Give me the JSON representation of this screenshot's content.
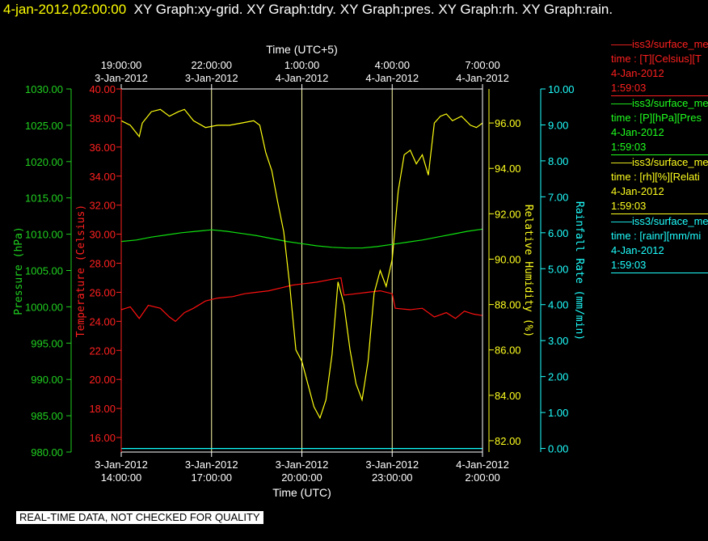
{
  "header": {
    "timestamp": "4-jan-2012,02:00:00",
    "titles": "XY Graph:xy-grid.  XY Graph:tdry.  XY Graph:pres.  XY Graph:rh.  XY Graph:rain."
  },
  "footer": "REAL-TIME DATA, NOT CHECKED FOR QUALITY",
  "colors": {
    "background": "#000000",
    "frame": "#ffffff",
    "grid": "#ffffaa",
    "temperature": "#ff0000",
    "pressure": "#00ff00",
    "rh": "#ffff00",
    "rain": "#00ffff"
  },
  "legend": [
    {
      "line1": "iss3/surface_me",
      "line2": "time : [T][Celsius][T",
      "line3": "4-Jan-2012",
      "line4": "1:59:03",
      "color": "#ff2020"
    },
    {
      "line1": "iss3/surface_me",
      "line2": "time : [P][hPa][Pres",
      "line3": "4-Jan-2012",
      "line4": "1:59:03",
      "color": "#20ff20"
    },
    {
      "line1": "iss3/surface_me",
      "line2": "time : [rh][%][Relati",
      "line3": "4-Jan-2012",
      "line4": "1:59:03",
      "color": "#ffff20"
    },
    {
      "line1": "iss3/surface_me",
      "line2": "time : [rainr][mm/mi",
      "line3": "4-Jan-2012",
      "line4": "1:59:03",
      "color": "#20ffff"
    }
  ],
  "chart_data": {
    "type": "line",
    "grid": true,
    "x_top": {
      "title": "Time (UTC+5)",
      "ticks": [
        {
          "time": "19:00:00",
          "date": "3-Jan-2012"
        },
        {
          "time": "22:00:00",
          "date": "3-Jan-2012"
        },
        {
          "time": "1:00:00",
          "date": "4-Jan-2012"
        },
        {
          "time": "4:00:00",
          "date": "4-Jan-2012"
        },
        {
          "time": "7:00:00",
          "date": "4-Jan-2012"
        }
      ]
    },
    "x_bottom": {
      "title": "Time (UTC)",
      "range": [
        "3-Jan-2012 14:00:00",
        "4-Jan-2012 2:00:00"
      ],
      "ticks": [
        {
          "date": "3-Jan-2012",
          "time": "14:00:00"
        },
        {
          "date": "3-Jan-2012",
          "time": "17:00:00"
        },
        {
          "date": "3-Jan-2012",
          "time": "20:00:00"
        },
        {
          "date": "3-Jan-2012",
          "time": "23:00:00"
        },
        {
          "date": "4-Jan-2012",
          "time": "2:00:00"
        }
      ]
    },
    "axes": {
      "pressure": {
        "label": "Pressure (hPa)",
        "range": [
          980,
          1030
        ],
        "ticks": [
          "980.00",
          "985.00",
          "990.00",
          "995.00",
          "1000.00",
          "1005.00",
          "1010.00",
          "1015.00",
          "1020.00",
          "1025.00",
          "1030.00"
        ]
      },
      "temperature": {
        "label": "Temperature (Celsius)",
        "range": [
          15,
          40
        ],
        "ticks": [
          "16.00",
          "18.00",
          "20.00",
          "22.00",
          "24.00",
          "26.00",
          "28.00",
          "30.00",
          "32.00",
          "34.00",
          "36.00",
          "38.00",
          "40.00"
        ]
      },
      "rh": {
        "label": "Relative Humidity (%)",
        "range": [
          81.5,
          97.5
        ],
        "ticks": [
          "82.00",
          "84.00",
          "86.00",
          "88.00",
          "90.00",
          "92.00",
          "94.00",
          "96.00"
        ]
      },
      "rain": {
        "label": "Rainfall Rate (mm/min)",
        "range": [
          -0.1,
          10
        ],
        "ticks": [
          "0.00",
          "1.00",
          "2.00",
          "3.00",
          "4.00",
          "5.00",
          "6.00",
          "7.00",
          "8.00",
          "9.00",
          "10.00"
        ]
      }
    },
    "series": [
      {
        "name": "Temperature",
        "axis": "temperature",
        "points": [
          [
            14.0,
            24.8
          ],
          [
            14.3,
            25.0
          ],
          [
            14.6,
            24.2
          ],
          [
            14.9,
            25.1
          ],
          [
            15.3,
            24.9
          ],
          [
            15.6,
            24.3
          ],
          [
            15.8,
            24.0
          ],
          [
            16.1,
            24.6
          ],
          [
            16.4,
            24.9
          ],
          [
            16.8,
            25.4
          ],
          [
            17.2,
            25.6
          ],
          [
            17.7,
            25.7
          ],
          [
            18.1,
            25.9
          ],
          [
            18.5,
            26.0
          ],
          [
            18.9,
            26.1
          ],
          [
            19.3,
            26.3
          ],
          [
            19.7,
            26.5
          ],
          [
            20.1,
            26.6
          ],
          [
            20.5,
            26.7
          ],
          [
            21.0,
            26.9
          ],
          [
            21.3,
            27.0
          ],
          [
            21.4,
            25.8
          ],
          [
            21.8,
            25.9
          ],
          [
            22.2,
            26.0
          ],
          [
            22.6,
            26.1
          ],
          [
            23.0,
            25.9
          ],
          [
            23.1,
            24.9
          ],
          [
            23.6,
            24.8
          ],
          [
            24.0,
            24.9
          ],
          [
            24.4,
            24.3
          ],
          [
            24.8,
            24.6
          ],
          [
            25.1,
            24.2
          ],
          [
            25.4,
            24.7
          ],
          [
            25.7,
            24.5
          ],
          [
            26.0,
            24.4
          ]
        ]
      },
      {
        "name": "Pressure",
        "axis": "pressure",
        "points": [
          [
            14.0,
            1009.0
          ],
          [
            14.5,
            1009.2
          ],
          [
            15.0,
            1009.6
          ],
          [
            15.5,
            1009.9
          ],
          [
            16.0,
            1010.2
          ],
          [
            16.5,
            1010.4
          ],
          [
            17.0,
            1010.6
          ],
          [
            17.5,
            1010.4
          ],
          [
            18.0,
            1010.1
          ],
          [
            18.5,
            1009.8
          ],
          [
            19.0,
            1009.4
          ],
          [
            19.5,
            1009.0
          ],
          [
            20.0,
            1008.7
          ],
          [
            20.5,
            1008.4
          ],
          [
            21.0,
            1008.2
          ],
          [
            21.5,
            1008.1
          ],
          [
            22.0,
            1008.1
          ],
          [
            22.5,
            1008.3
          ],
          [
            23.0,
            1008.6
          ],
          [
            23.5,
            1008.9
          ],
          [
            24.0,
            1009.2
          ],
          [
            24.5,
            1009.6
          ],
          [
            25.0,
            1010.0
          ],
          [
            25.5,
            1010.4
          ],
          [
            26.0,
            1010.7
          ]
        ]
      },
      {
        "name": "Relative Humidity",
        "axis": "rh",
        "points": [
          [
            14.0,
            96.1
          ],
          [
            14.3,
            95.9
          ],
          [
            14.6,
            95.4
          ],
          [
            14.7,
            96.0
          ],
          [
            15.0,
            96.5
          ],
          [
            15.3,
            96.6
          ],
          [
            15.6,
            96.3
          ],
          [
            15.9,
            96.5
          ],
          [
            16.1,
            96.6
          ],
          [
            16.4,
            96.1
          ],
          [
            16.8,
            95.8
          ],
          [
            17.2,
            95.9
          ],
          [
            17.6,
            95.9
          ],
          [
            18.0,
            96.0
          ],
          [
            18.4,
            96.1
          ],
          [
            18.6,
            95.9
          ],
          [
            18.8,
            94.7
          ],
          [
            19.0,
            93.9
          ],
          [
            19.2,
            92.5
          ],
          [
            19.4,
            91.2
          ],
          [
            19.6,
            88.8
          ],
          [
            19.8,
            86.0
          ],
          [
            20.0,
            85.5
          ],
          [
            20.2,
            84.5
          ],
          [
            20.4,
            83.5
          ],
          [
            20.6,
            83.0
          ],
          [
            20.8,
            83.8
          ],
          [
            21.0,
            85.8
          ],
          [
            21.2,
            89.0
          ],
          [
            21.4,
            88.0
          ],
          [
            21.6,
            86.0
          ],
          [
            21.8,
            84.5
          ],
          [
            22.0,
            83.8
          ],
          [
            22.2,
            85.5
          ],
          [
            22.4,
            88.5
          ],
          [
            22.6,
            89.5
          ],
          [
            22.8,
            88.8
          ],
          [
            23.0,
            90.0
          ],
          [
            23.2,
            93.0
          ],
          [
            23.4,
            94.6
          ],
          [
            23.6,
            94.8
          ],
          [
            23.8,
            94.2
          ],
          [
            24.0,
            94.6
          ],
          [
            24.2,
            93.7
          ],
          [
            24.4,
            96.0
          ],
          [
            24.6,
            96.3
          ],
          [
            24.8,
            96.4
          ],
          [
            25.0,
            96.1
          ],
          [
            25.3,
            96.3
          ],
          [
            25.6,
            95.9
          ],
          [
            25.8,
            95.8
          ],
          [
            26.0,
            96.0
          ]
        ]
      },
      {
        "name": "Rainfall Rate",
        "axis": "rain",
        "points": [
          [
            14.0,
            0.0
          ],
          [
            26.0,
            0.0
          ]
        ]
      }
    ]
  }
}
